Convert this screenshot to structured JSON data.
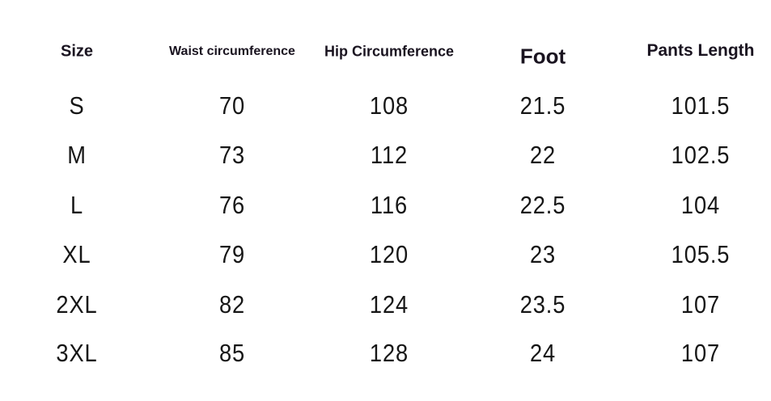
{
  "headers": [
    "Size",
    "Waist circumference",
    "Hip Circumference",
    "Foot",
    "Pants Length"
  ],
  "rows": [
    [
      "S",
      "70",
      "108",
      "21.5",
      "101.5"
    ],
    [
      "M",
      "73",
      "112",
      "22",
      "102.5"
    ],
    [
      "L",
      "76",
      "116",
      "22.5",
      "104"
    ],
    [
      "XL",
      "79",
      "120",
      "23",
      "105.5"
    ],
    [
      "2XL",
      "82",
      "124",
      "23.5",
      "107"
    ],
    [
      "3XL",
      "85",
      "128",
      "24",
      "107"
    ]
  ]
}
